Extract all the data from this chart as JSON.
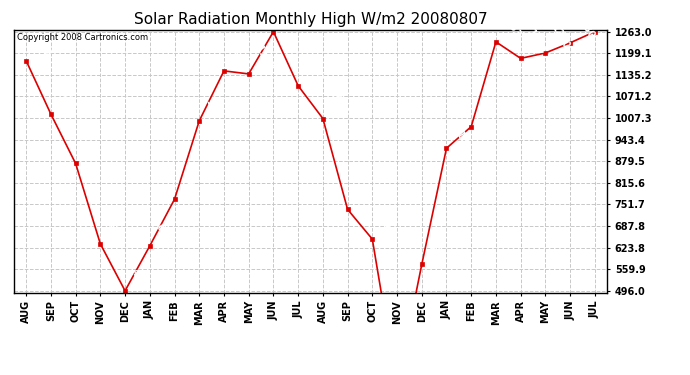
{
  "title": "Solar Radiation Monthly High W/m2 20080807",
  "copyright": "Copyright 2008 Cartronics.com",
  "months": [
    "AUG",
    "SEP",
    "OCT",
    "NOV",
    "DEC",
    "JAN",
    "FEB",
    "MAR",
    "APR",
    "MAY",
    "JUN",
    "JUL",
    "AUG",
    "SEP",
    "OCT",
    "NOV",
    "DEC",
    "JAN",
    "FEB",
    "MAR",
    "APR",
    "MAY",
    "JUN",
    "JUL"
  ],
  "values": [
    1177,
    1019,
    873,
    635,
    496,
    629,
    767,
    999,
    1147,
    1138,
    1263,
    1103,
    1006,
    737,
    649,
    212,
    574,
    918,
    982,
    1233,
    1184,
    1200,
    1230,
    1263
  ],
  "yticks": [
    496.0,
    559.9,
    623.8,
    687.8,
    751.7,
    815.6,
    879.5,
    943.4,
    1007.3,
    1071.2,
    1135.2,
    1199.1,
    1263.0
  ],
  "ymin": 496.0,
  "ymax": 1263.0,
  "line_color": "#dd0000",
  "marker_color": "#dd0000",
  "bg_color": "#ffffff",
  "grid_color": "#c8c8c8",
  "title_fontsize": 11,
  "tick_fontsize": 7,
  "annotation_fontsize": 7,
  "annotation_color": "#ffffff"
}
